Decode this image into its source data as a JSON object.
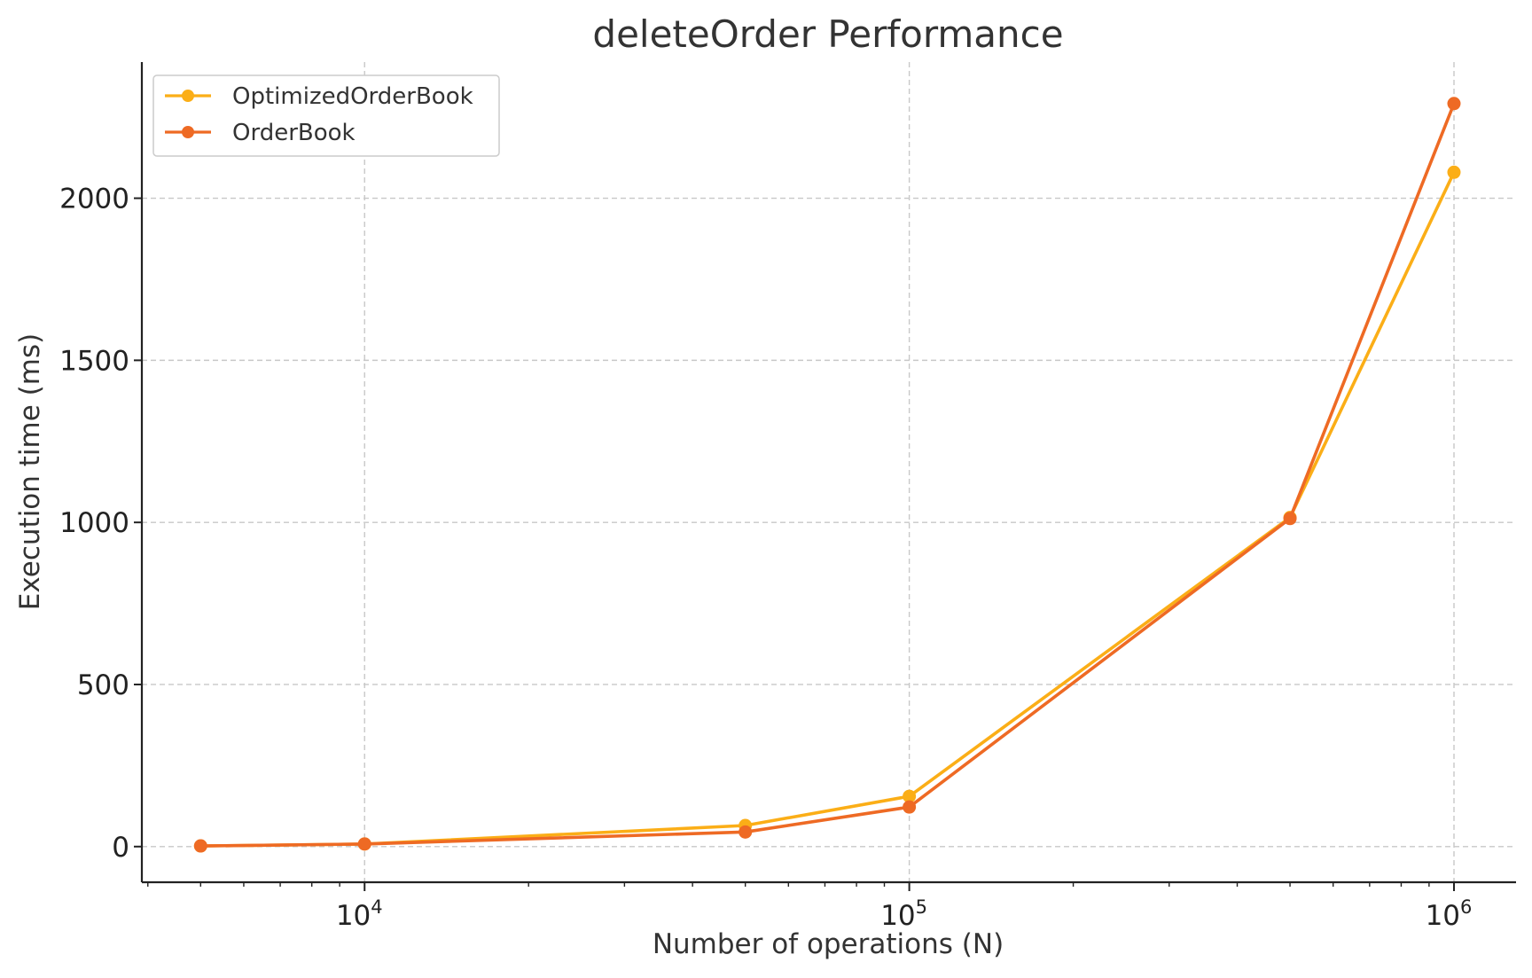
{
  "chart_data": {
    "type": "line",
    "title": "deleteOrder Performance",
    "xlabel": "Number of operations (N)",
    "ylabel": "Execution time (ms)",
    "x_scale": "log",
    "x": [
      5000,
      10000,
      50000,
      100000,
      500000,
      1000000
    ],
    "xlim": [
      3900,
      1300000
    ],
    "ylim": [
      -110,
      2420
    ],
    "x_ticks": [
      {
        "value": 10000,
        "base": "10",
        "exp": "4"
      },
      {
        "value": 100000,
        "base": "10",
        "exp": "5"
      },
      {
        "value": 1000000,
        "base": "10",
        "exp": "6"
      }
    ],
    "y_ticks": [
      {
        "value": 0,
        "label": "0"
      },
      {
        "value": 500,
        "label": "500"
      },
      {
        "value": 1000,
        "label": "1000"
      },
      {
        "value": 1500,
        "label": "1500"
      },
      {
        "value": 2000,
        "label": "2000"
      }
    ],
    "grid": true,
    "legend_position": "top-left",
    "series": [
      {
        "name": "OptimizedOrderBook",
        "color": "#FBAE17",
        "values": [
          2,
          8,
          65,
          155,
          1015,
          2080
        ]
      },
      {
        "name": "OrderBook",
        "color": "#EE6A24",
        "values": [
          2,
          8,
          45,
          122,
          1012,
          2292
        ]
      }
    ]
  }
}
